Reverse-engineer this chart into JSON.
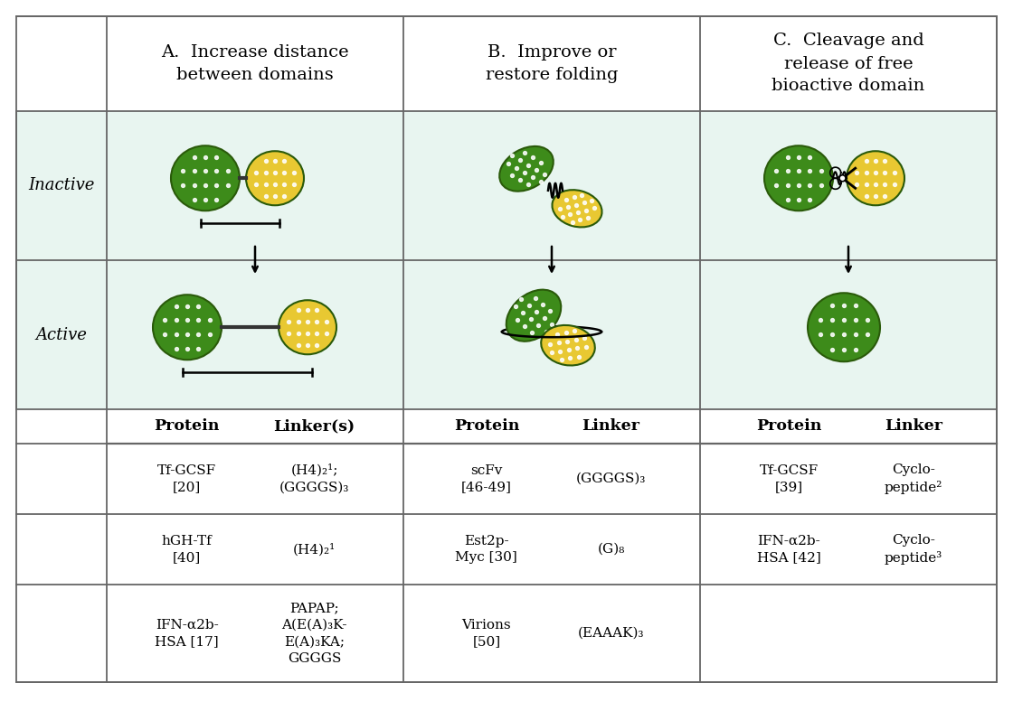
{
  "bg_color": "#ffffff",
  "teal_bg": "#e8f5f0",
  "green_dark": "#3d8b1a",
  "yellow": "#e8c832",
  "col_headers": [
    "A.  Increase distance\nbetween domains",
    "B.  Improve or\nrestore folding",
    "C.  Cleavage and\nrelease of free\nbioactive domain"
  ],
  "row_labels": [
    "Inactive",
    "Active"
  ],
  "table_data": [
    [
      "Tf-GCSF\n[20]",
      "(H4)₂¹;\n(GGGGS)₃",
      "scFv\n[46-49]",
      "(GGGGS)₃",
      "Tf-GCSF\n[39]",
      "Cyclo-\npeptide²"
    ],
    [
      "hGH-Tf\n[40]",
      "(H4)₂¹",
      "Est2p-\nMyc [30]",
      "(G)₈",
      "IFN-α2b-\nHSA [42]",
      "Cyclo-\npeptide³"
    ],
    [
      "IFN-α2b-\nHSA [17]",
      "PAPAP;\nA(E(A)₃K-\nE(A)₃KA;\nGGGGS",
      "Virions\n[50]",
      "(EAAAK)₃",
      "",
      ""
    ]
  ],
  "border_color": "#666666",
  "figure_width": 11.2,
  "figure_height": 7.77
}
